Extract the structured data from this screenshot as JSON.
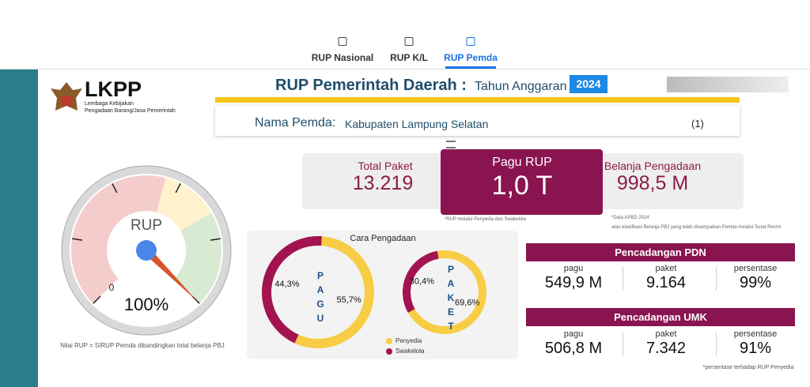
{
  "nav": {
    "tabs": [
      "RUP Nasional",
      "RUP K/L",
      "RUP Pemda"
    ],
    "active": 2
  },
  "logo": {
    "name": "LKPP",
    "line1": "Lembaga Kebijakan",
    "line2": "Pengadaan Barang/Jasa Pemerintah"
  },
  "header": {
    "title": "RUP Pemerintah Daerah :",
    "subtitle": "Tahun Anggaran",
    "year": "2024"
  },
  "pemda": {
    "label": "Nama Pemda:",
    "value": "Kabupaten Lampung Selatan",
    "filter": "(1)"
  },
  "stats": [
    {
      "label": "Total Paket",
      "value": "13.219"
    },
    {
      "label": "Pagu RUP",
      "value": "1,0 T"
    },
    {
      "label": "Belanja Pengadaan",
      "value": "998,5 M"
    }
  ],
  "notes": {
    "pagu": "*RUP melalui Penyedia dan Swakelola",
    "belanja1": "*Data APBD 2024",
    "belanja2": "atau klasifikasi Belanja PBJ yang telah disampaikan Pemda melalui Surat Resmi"
  },
  "gauge": {
    "label": "RUP",
    "min_label": "0",
    "value_label": "100%",
    "caption": "Nilai RUP = SIRUP Pemda dibandingkan total belanja PBJ"
  },
  "cara": {
    "title": "Cara Pengadaan",
    "legend": [
      "Penyedia",
      "Swakelola"
    ],
    "colors": [
      "#f7cd45",
      "#a3134f"
    ],
    "donuts": [
      {
        "name": "PAGU",
        "values": [
          55.7,
          44.3
        ],
        "value_labels": [
          "55,7%",
          "44,3%"
        ]
      },
      {
        "name": "PAKET",
        "values": [
          69.6,
          30.4
        ],
        "value_labels": [
          "69,6%",
          "30,4%"
        ]
      }
    ]
  },
  "pdn": {
    "title": "Pencadangan PDN",
    "items": [
      {
        "label": "pagu",
        "value": "549,9 M"
      },
      {
        "label": "paket",
        "value": "9.164"
      },
      {
        "label": "persentase",
        "value": "99%"
      }
    ]
  },
  "umk": {
    "title": "Pencadangan UMK",
    "items": [
      {
        "label": "pagu",
        "value": "506,8 M"
      },
      {
        "label": "paket",
        "value": "7.342"
      },
      {
        "label": "persentase",
        "value": "91%"
      }
    ]
  },
  "footnote": "*persentase terhadap RUP Penyedia"
}
